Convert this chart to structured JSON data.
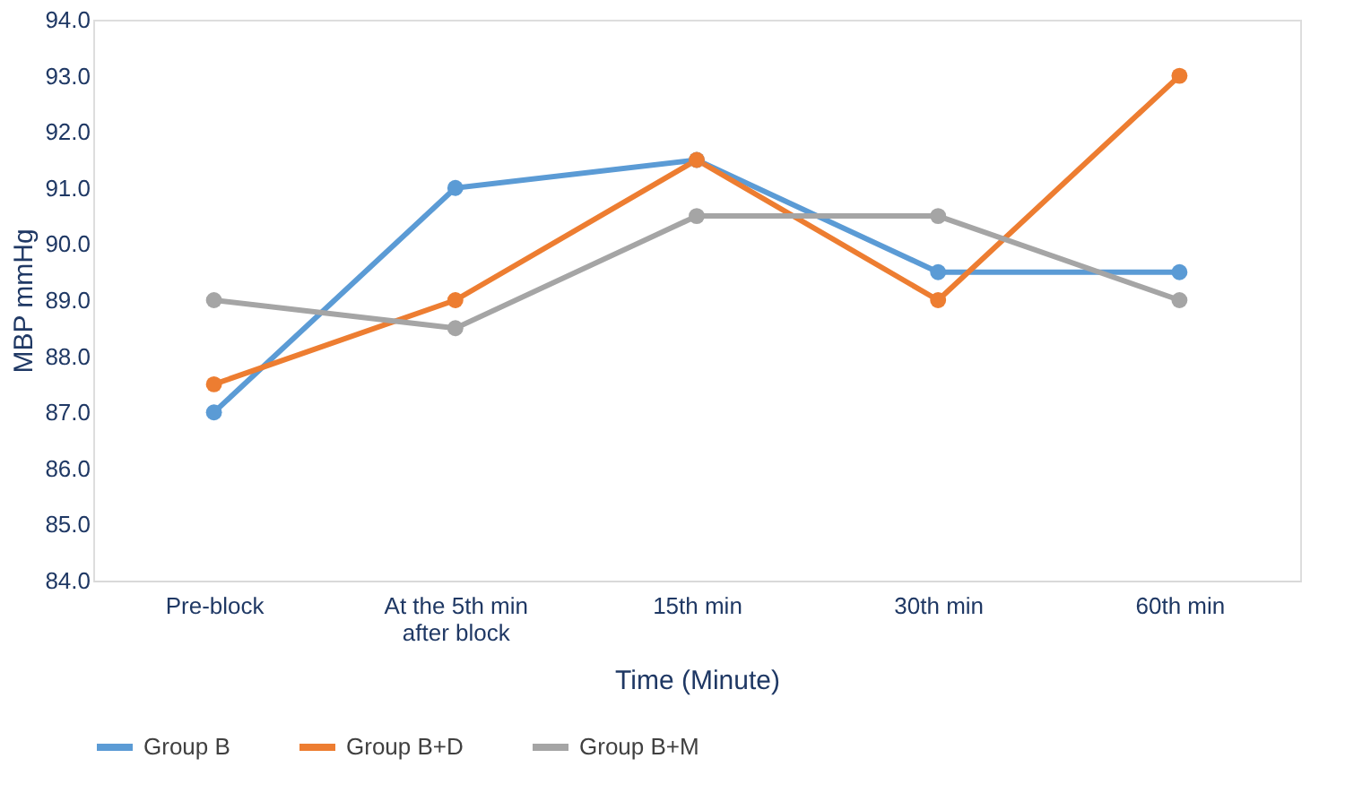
{
  "chart_data": {
    "type": "line",
    "xlabel": "Time (Minute)",
    "ylabel": "MBP mmHg",
    "categories": [
      "Pre-block",
      "At the 5th min after block",
      "15th min",
      "30th min",
      "60th min"
    ],
    "series": [
      {
        "name": "Group B",
        "color": "#5b9bd5",
        "values": [
          87.0,
          91.0,
          91.5,
          89.5,
          89.5
        ]
      },
      {
        "name": "Group B+D",
        "color": "#ed7d31",
        "values": [
          87.5,
          89.0,
          91.5,
          89.0,
          93.0
        ]
      },
      {
        "name": "Group B+M",
        "color": "#a5a5a5",
        "values": [
          89.0,
          88.5,
          90.5,
          90.5,
          89.0
        ]
      }
    ],
    "ylim": [
      84,
      94
    ],
    "yticks": [
      {
        "value": 84,
        "label": "84.0"
      },
      {
        "value": 85,
        "label": "85.0"
      },
      {
        "value": 86,
        "label": "86.0"
      },
      {
        "value": 87,
        "label": "87.0"
      },
      {
        "value": 88,
        "label": "88.0"
      },
      {
        "value": 89,
        "label": "89.0"
      },
      {
        "value": 90,
        "label": "90.0"
      },
      {
        "value": 91,
        "label": "91.0"
      },
      {
        "value": 92,
        "label": "92.0"
      },
      {
        "value": 93,
        "label": "93.0"
      },
      {
        "value": 94,
        "label": "94.0"
      }
    ],
    "grid": false,
    "legend": "bottom",
    "marker": "circle",
    "line_style": "solid"
  }
}
